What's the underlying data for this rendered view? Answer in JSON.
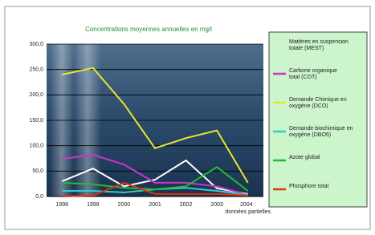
{
  "chart_data": {
    "type": "line",
    "title": "Concentrations moyennes annuelles en mg/l",
    "categories": [
      "1998",
      "1999",
      "2000",
      "2001",
      "2002",
      "2003",
      "2004 : données partielles"
    ],
    "series": [
      {
        "name": "Matières en suspension totale (MEST)",
        "color": "#ffffff",
        "values": [
          30,
          55,
          20,
          33,
          71,
          16,
          5
        ]
      },
      {
        "name": "Carbone organique total (COT)",
        "color": "#cc33cc",
        "values": [
          74,
          82,
          63,
          27,
          27,
          20,
          3
        ]
      },
      {
        "name": "Demande Chimique en oxygène (DCO)",
        "color": "#e6e632",
        "values": [
          240,
          253,
          182,
          95,
          115,
          130,
          27
        ]
      },
      {
        "name": "Demande biochimique en oxygène (DBO5)",
        "color": "#33cccc",
        "values": [
          11,
          11,
          8,
          14,
          17,
          11,
          3
        ]
      },
      {
        "name": "Azote global",
        "color": "#22bb33",
        "values": [
          27,
          24,
          17,
          14,
          20,
          58,
          11
        ]
      },
      {
        "name": "Phosphore total",
        "color": "#dd3311",
        "values": [
          0,
          2,
          27,
          5,
          5,
          5,
          2
        ]
      }
    ],
    "ylim": [
      0,
      300
    ],
    "yticks": [
      {
        "value": 0,
        "label": "0,0"
      },
      {
        "value": 50,
        "label": "50,0"
      },
      {
        "value": 100,
        "label": "100,0"
      },
      {
        "value": 150,
        "label": "150,0"
      },
      {
        "value": 200,
        "label": "200,0"
      },
      {
        "value": 250,
        "label": "250,0"
      },
      {
        "value": 300,
        "label": "300,0"
      }
    ],
    "grid": true,
    "legend": "right"
  }
}
